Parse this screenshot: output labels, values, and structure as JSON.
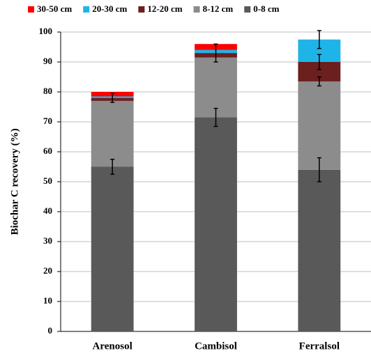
{
  "chart_data": {
    "type": "bar",
    "stacked": true,
    "y_label": "Biochar C recovery (%)",
    "categories": [
      "Arenosol",
      "Cambisol",
      "Ferralsol"
    ],
    "series": [
      {
        "name": "0-8 cm",
        "color": "#595959",
        "values": [
          55,
          71.5,
          54
        ],
        "errors": [
          2.5,
          3,
          4
        ]
      },
      {
        "name": "8-12 cm",
        "color": "#8c8c8c",
        "values": [
          22,
          20,
          29.5
        ],
        "errors": [
          null,
          null,
          1.5
        ]
      },
      {
        "name": "12-20 cm",
        "color": "#6b1f1f",
        "values": [
          1,
          1.5,
          6.5
        ],
        "errors": [
          1.5,
          3,
          2.5
        ]
      },
      {
        "name": "20-30 cm",
        "color": "#1fb4e8",
        "values": [
          0.5,
          1,
          7.5
        ],
        "errors": [
          null,
          null,
          3
        ]
      },
      {
        "name": "30-50 cm",
        "color": "#ff0000",
        "values": [
          1.5,
          2,
          0
        ],
        "errors": [
          null,
          null,
          null
        ]
      }
    ],
    "ylim": [
      0,
      100
    ],
    "yticks": [
      0,
      10,
      20,
      30,
      40,
      50,
      60,
      70,
      80,
      90,
      100
    ],
    "grid": true
  }
}
